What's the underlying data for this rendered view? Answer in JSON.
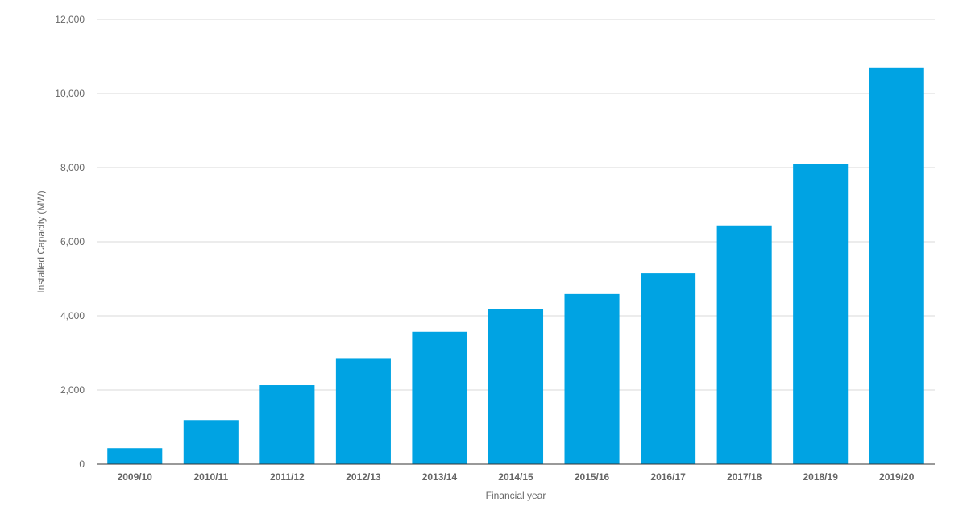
{
  "chart_data": {
    "type": "bar",
    "categories": [
      "2009/10",
      "2010/11",
      "2011/12",
      "2012/13",
      "2013/14",
      "2014/15",
      "2015/16",
      "2016/17",
      "2017/18",
      "2018/19",
      "2019/20"
    ],
    "values": [
      430,
      1190,
      2130,
      2860,
      3570,
      4180,
      4590,
      5150,
      6440,
      8100,
      10700
    ],
    "xlabel": "Financial year",
    "ylabel": "Installed Capacity (MW)",
    "ylim": [
      0,
      12000
    ],
    "yticks": [
      0,
      2000,
      4000,
      6000,
      8000,
      10000,
      12000
    ],
    "ytick_labels": [
      "0",
      "2,000",
      "4,000",
      "6,000",
      "8,000",
      "10,000",
      "12,000"
    ],
    "grid": true,
    "legend": "none",
    "bar_color": "#00A3E3"
  }
}
